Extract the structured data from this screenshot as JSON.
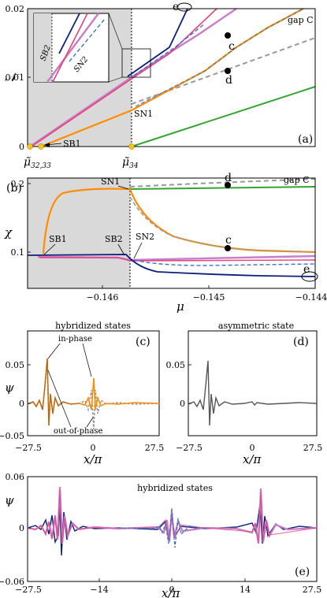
{
  "colors": {
    "orange": "#ff8c00",
    "pink": "#e8407a",
    "violet": "#c77dc9",
    "navy": "#0b1f7a",
    "blue_dashed": "#3b75c4",
    "green": "#33a532",
    "gray_dashed": "#999999",
    "shade": "#d9d9d9",
    "marker_yellow": "#f5c518"
  },
  "chart_data": [
    {
      "type": "line",
      "panel": "(a)",
      "ylabel": "𝒩",
      "xticklabels": [
        "μ̃32,33",
        "μ̃34"
      ],
      "ytick_labels": [
        "0",
        "0.01",
        "0.02"
      ],
      "ylim": [
        0,
        0.02
      ],
      "annotations": [
        "gap C",
        "SB1",
        "SN1",
        "c",
        "d",
        "e",
        "SB2",
        "SN2"
      ],
      "shaded_region": true,
      "grid": false,
      "legend": "none"
    },
    {
      "type": "line",
      "panel": "(b)",
      "xlabel": "μ",
      "ylabel": "χ",
      "xlim": [
        -0.1468,
        -0.144
      ],
      "ylim": [
        0.05,
        0.2
      ],
      "xtick_labels": [
        "−0.146",
        "−0.145",
        "−0.144"
      ],
      "ytick_labels": [
        "0.1",
        "0.2"
      ],
      "annotations": [
        "gap C",
        "SN1",
        "SB1",
        "SB2",
        "SN2",
        "c",
        "d",
        "e"
      ],
      "shaded_region": true,
      "grid": false,
      "legend": "none"
    },
    {
      "type": "line",
      "panel": "(c)",
      "title": "hybridized states",
      "xlabel": "x/π",
      "ylabel": "ψ",
      "xlim": [
        -27.5,
        27.5
      ],
      "ylim": [
        -0.05,
        0.065
      ],
      "xtick_labels": [
        "−27.5",
        "0",
        "27.5"
      ],
      "ytick_labels": [
        "0.05",
        "0",
        "−0.05"
      ],
      "annotations": [
        "in-phase",
        "out-of-phase"
      ]
    },
    {
      "type": "line",
      "panel": "(d)",
      "title": "asymmetric state",
      "xlabel": "x/π",
      "xlim": [
        -27.5,
        27.5
      ],
      "ylim": [
        -0.05,
        0.065
      ],
      "xtick_labels": [
        "−27.5",
        "0",
        "27.5"
      ],
      "ytick_labels": [
        "0.05",
        "0"
      ]
    },
    {
      "type": "line",
      "panel": "(e)",
      "title": "hybridized states",
      "xlabel": "x/π",
      "ylabel": "ψ",
      "xlim": [
        -27.5,
        27.5
      ],
      "ylim": [
        -0.06,
        0.06
      ],
      "xtick_labels": [
        "−27.5",
        "−14",
        "0",
        "14",
        "27.5"
      ],
      "ytick_labels": [
        "0.06",
        "0",
        "−0.06"
      ]
    }
  ],
  "labels": {
    "a_ylabel": "𝒩",
    "a_y0": "0",
    "a_y1": "0.01",
    "a_y2": "0.02",
    "a_gap": "gap C",
    "a_panel": "(a)",
    "a_sb1": "SB1",
    "a_sn1": "SN1",
    "a_c": "c",
    "a_d": "d",
    "a_e": "e",
    "a_sb2": "SB2",
    "a_sn2": "SN2",
    "a_mu1": "μ̃",
    "a_mu1_sub": "32,33",
    "a_mu2": "μ̃",
    "a_mu2_sub": "34",
    "b_ylabel": "χ",
    "b_panel": "(b)",
    "b_y1": "0.1",
    "b_y2": "0.2",
    "b_gap": "gap C",
    "b_sn1": "SN1",
    "b_sb1": "SB1",
    "b_sb2": "SB2",
    "b_sn2": "SN2",
    "b_c": "c",
    "b_d": "d",
    "b_e": "e",
    "b_x1": "−0.146",
    "b_x2": "−0.145",
    "b_x3": "−0.144",
    "b_xlabel": "μ",
    "c_title": "hybridized states",
    "c_panel": "(c)",
    "c_ylabel": "ψ",
    "c_inphase": "in-phase",
    "c_outphase": "out-of-phase",
    "c_y1": "0.05",
    "c_y0": "0",
    "c_ym": "−0.05",
    "c_x1": "−27.5",
    "c_x2": "0",
    "c_x3": "27.5",
    "c_xlabel": "x/π",
    "d_title": "asymmetric state",
    "d_panel": "(d)",
    "d_y1": "0.05",
    "d_y0": "0",
    "d_x1": "−27.5",
    "d_x2": "0",
    "d_x3": "27.5",
    "d_xlabel": "x/π",
    "e_title": "hybridized states",
    "e_panel": "(e)",
    "e_ylabel": "ψ",
    "e_y1": "0.06",
    "e_y0": "0",
    "e_ym": "−0.06",
    "e_x1": "−27.5",
    "e_x2": "−14",
    "e_x3": "0",
    "e_x4": "14",
    "e_x5": "27.5",
    "e_xlabel": "x/π"
  }
}
